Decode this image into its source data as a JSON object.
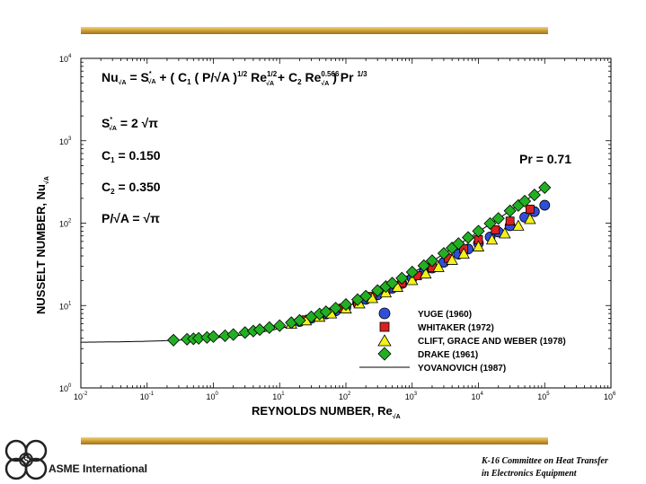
{
  "slide": {
    "org_name": "ASME International",
    "credit_line1": "K-16 Committee on Heat Transfer",
    "credit_line2": "in Electronics Equipment"
  },
  "colors": {
    "bar_gold": "#c9992f",
    "yuge": "#2f4fd8",
    "whitaker": "#d82020",
    "clift": "#f2f21a",
    "drake": "#22b022"
  },
  "chart_data": {
    "type": "scatter",
    "xscale": "log",
    "yscale": "log",
    "xlim": [
      0.01,
      1000000
    ],
    "ylim": [
      1,
      10000
    ],
    "xlabel": "REYNOLDS NUMBER,  Re",
    "xlabel_sub": "√A",
    "ylabel": "NUSSELT NUMBER,  Nu",
    "ylabel_sub": "√A",
    "x_ticks": [
      {
        "base": "10",
        "exp": "-2"
      },
      {
        "base": "10",
        "exp": "-1"
      },
      {
        "base": "10",
        "exp": "0"
      },
      {
        "base": "10",
        "exp": "1"
      },
      {
        "base": "10",
        "exp": "2"
      },
      {
        "base": "10",
        "exp": "3"
      },
      {
        "base": "10",
        "exp": "4"
      },
      {
        "base": "10",
        "exp": "5"
      },
      {
        "base": "10",
        "exp": "6"
      }
    ],
    "y_ticks": [
      {
        "base": "10",
        "exp": "0"
      },
      {
        "base": "10",
        "exp": "1"
      },
      {
        "base": "10",
        "exp": "2"
      },
      {
        "base": "10",
        "exp": "3"
      },
      {
        "base": "10",
        "exp": "4"
      }
    ],
    "equation": "Nu√A = S*√A +  ( C1 ( P/√A )1/2 Re√A1/2 + C2 Re√A0.566 ) Pr 1/3",
    "params": [
      "S*√A = 2 √π",
      "C1 = 0.150",
      "C2 = 0.350",
      "P/√A = √π"
    ],
    "annotation": "Pr = 0.71",
    "legend_position": "bottom-right",
    "series": [
      {
        "name": "YUGE  (1960)",
        "marker": "circle",
        "color": "#2f4fd8",
        "x": [
          20,
          30,
          50,
          70,
          100,
          150,
          200,
          300,
          500,
          700,
          1000,
          1500,
          2000,
          3000,
          5000,
          7000,
          10000,
          15000,
          20000,
          30000,
          50000,
          70000,
          100000
        ],
        "y": [
          6.4,
          7.0,
          7.9,
          8.6,
          9.5,
          10.8,
          11.9,
          13.5,
          16.2,
          18.5,
          21.5,
          25.2,
          28.5,
          33.5,
          42,
          48.5,
          57,
          68,
          78,
          93,
          118,
          138,
          165
        ]
      },
      {
        "name": "WHITAKER  (1972)",
        "marker": "square",
        "color": "#d82020",
        "x": [
          25,
          40,
          60,
          90,
          150,
          250,
          400,
          700,
          1200,
          2000,
          3500,
          6000,
          10000,
          18000,
          30000,
          60000
        ],
        "y": [
          6.7,
          7.5,
          8.3,
          9.3,
          10.9,
          12.9,
          15.2,
          18.7,
          23.0,
          28.8,
          37.5,
          48.8,
          63,
          83,
          106,
          148
        ]
      },
      {
        "name": "CLIFT, GRACE AND WEBER  (1978)",
        "marker": "triangle",
        "color": "#f2f21a",
        "x": [
          15,
          25,
          40,
          60,
          100,
          160,
          250,
          400,
          600,
          1000,
          1600,
          2500,
          4000,
          6000,
          10000,
          16000,
          25000,
          40000,
          60000
        ],
        "y": [
          6.0,
          6.6,
          7.3,
          8.0,
          9.2,
          10.6,
          12.3,
          14.4,
          16.8,
          20.3,
          24.4,
          29.3,
          35.8,
          42.5,
          52,
          63,
          75,
          93,
          112
        ]
      },
      {
        "name": "DRAKE  (1961)",
        "marker": "diamond",
        "color": "#22b022",
        "x": [
          0.25,
          0.4,
          0.5,
          0.6,
          0.8,
          1,
          1.5,
          2,
          3,
          4,
          5,
          7,
          10,
          15,
          20,
          30,
          40,
          50,
          70,
          100,
          150,
          200,
          300,
          400,
          500,
          700,
          1000,
          1500,
          2000,
          3000,
          4000,
          5000,
          7000,
          10000,
          15000,
          20000,
          30000,
          40000,
          50000,
          70000,
          100000
        ],
        "y": [
          3.8,
          3.9,
          3.95,
          4.0,
          4.1,
          4.2,
          4.3,
          4.45,
          4.7,
          4.9,
          5.1,
          5.4,
          5.7,
          6.2,
          6.6,
          7.3,
          7.9,
          8.4,
          9.3,
          10.3,
          11.8,
          13.0,
          15.2,
          17.0,
          18.7,
          21.5,
          25.5,
          30.5,
          35,
          43,
          50,
          56.5,
          67,
          80,
          99,
          114,
          141,
          164,
          185,
          220,
          270
        ]
      }
    ],
    "model": {
      "name": "YOVANOVICH  (1987)",
      "S": 3.5449,
      "C1": 0.15,
      "C2": 0.35,
      "Pr": 0.71,
      "P_over_sqrtA": 1.7725
    }
  }
}
